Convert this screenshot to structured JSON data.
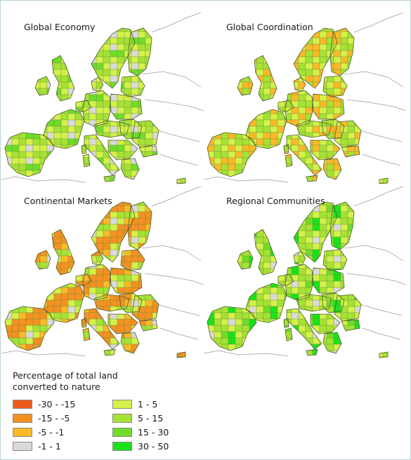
{
  "panels": [
    {
      "title": "Global Economy",
      "palette": [
        4,
        5,
        5,
        4,
        3,
        6,
        5,
        4,
        5,
        4,
        2,
        5,
        6,
        4,
        5,
        3,
        4,
        5,
        6,
        5,
        4,
        3,
        5,
        4,
        2,
        5,
        4,
        6,
        5,
        4
      ]
    },
    {
      "title": "Global Coordination",
      "palette": [
        4,
        5,
        2,
        4,
        3,
        5,
        4,
        2,
        5,
        4,
        3,
        2,
        5,
        4,
        5,
        2,
        4,
        5,
        3,
        5,
        4,
        2,
        5,
        4,
        3,
        5,
        4,
        2,
        5,
        4
      ]
    },
    {
      "title": "Continental Markets",
      "palette": [
        1,
        2,
        1,
        4,
        2,
        1,
        3,
        2,
        4,
        1,
        2,
        5,
        2,
        1,
        4,
        3,
        2,
        1,
        4,
        5,
        2,
        1,
        3,
        4,
        2,
        1,
        5,
        4,
        2,
        1
      ]
    },
    {
      "title": "Regional Communities",
      "palette": [
        4,
        5,
        6,
        4,
        3,
        5,
        4,
        6,
        5,
        4,
        2,
        5,
        6,
        4,
        5,
        7,
        4,
        5,
        6,
        5,
        4,
        3,
        5,
        4,
        6,
        5,
        4,
        7,
        5,
        4
      ]
    }
  ],
  "legend": {
    "title_line1": "Percentage of total land",
    "title_line2": "converted to nature",
    "items": [
      {
        "label": "-30 - -15",
        "color": "#ee5a1a"
      },
      {
        "label": "-15 - -5",
        "color": "#f49122"
      },
      {
        "label": "-5 - -1",
        "color": "#fbb928"
      },
      {
        "label": "-1 - 1",
        "color": "#dadada"
      },
      {
        "label": "1 - 5",
        "color": "#d4f14a"
      },
      {
        "label": "5 - 15",
        "color": "#a5e236"
      },
      {
        "label": "15 - 30",
        "color": "#6fdc2a"
      },
      {
        "label": "30 - 50",
        "color": "#19e21a"
      }
    ]
  }
}
